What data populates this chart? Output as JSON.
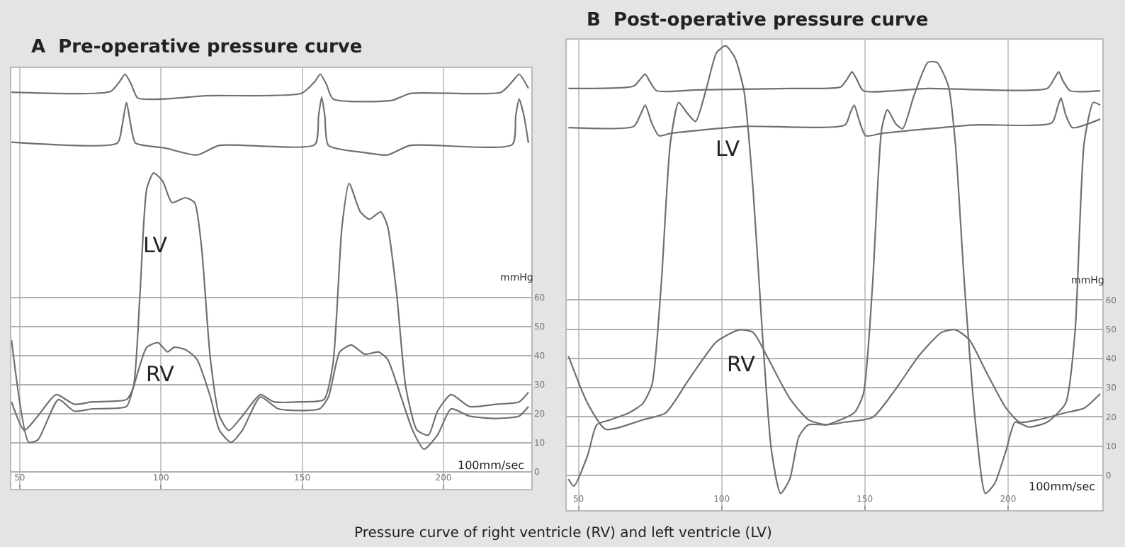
{
  "chart_data": [
    {
      "type": "line",
      "title": "A  Pre-operative pressure curve",
      "xlim": [
        47,
        231
      ],
      "ylim": [
        -6,
        139
      ],
      "xticks": [
        50,
        100,
        150,
        200
      ],
      "yticks": [
        0,
        10,
        20,
        30,
        40,
        50,
        60
      ],
      "grid": true,
      "legend": false,
      "marker": "none",
      "line_style": "solid",
      "annotations": [
        "mmHg",
        "100mm/sec",
        "Pressure curve of right ventricle (RV) and left ventricle (LV)"
      ],
      "series": [
        {
          "name": "LV",
          "color": "#707070",
          "x": [
            47.1,
            51.6,
            56.4,
            62.9,
            69.3,
            75.7,
            87.8,
            90.2,
            92.6,
            95.0,
            97.4,
            100.6,
            103.9,
            108.7,
            111.9,
            114.3,
            117.5,
            120.7,
            124.0,
            128.8,
            135.2,
            140.0,
            149.7,
            157.7,
            160.9,
            164.1,
            166.6,
            170.6,
            173.8,
            177.8,
            180.2,
            183.4,
            186.7,
            190.7,
            194.7,
            197.9,
            202.7,
            209.2,
            218.8,
            226.8,
            230.1
          ],
          "values": [
            24.0,
            14.2,
            19.1,
            26.5,
            23.2,
            24.0,
            24.8,
            28.9,
            61.6,
            97.5,
            102.8,
            100.0,
            92.6,
            94.3,
            92.6,
            77.9,
            38.7,
            19.1,
            14.2,
            19.1,
            26.5,
            24.0,
            24.0,
            24.8,
            37.1,
            84.5,
            99.2,
            89.4,
            86.9,
            89.4,
            84.5,
            61.6,
            28.9,
            14.2,
            12.6,
            20.8,
            26.5,
            22.4,
            23.2,
            24.0,
            27.3
          ]
        },
        {
          "name": "RV",
          "color": "#707070",
          "x": [
            47.1,
            53.2,
            56.4,
            63.7,
            69.3,
            75.7,
            87.8,
            90.2,
            95.0,
            99.0,
            102.3,
            104.7,
            108.7,
            112.7,
            117.5,
            120.7,
            124.8,
            128.8,
            135.2,
            141.6,
            156.1,
            159.3,
            163.3,
            167.4,
            172.2,
            177.0,
            180.2,
            185.0,
            189.1,
            193.1,
            197.9,
            202.7,
            209.2,
            218.8,
            226.8,
            230.1
          ],
          "values": [
            45.3,
            10.1,
            10.9,
            24.8,
            20.8,
            21.6,
            22.4,
            28.9,
            42.8,
            44.4,
            41.2,
            42.8,
            42.0,
            38.7,
            25.7,
            14.2,
            10.1,
            14.2,
            25.7,
            21.6,
            21.6,
            25.7,
            41.2,
            43.6,
            40.4,
            41.2,
            38.7,
            25.7,
            14.2,
            7.7,
            12.6,
            21.6,
            19.1,
            18.3,
            19.1,
            22.4
          ]
        },
        {
          "color": "#707070",
          "x": [
            47.1,
            82.2,
            85.4,
            87.3,
            89.4,
            91.8,
            101.4,
            115.9,
            149.7,
            154.5,
            156.4,
            158.5,
            160.9,
            181.8,
            188.3,
            220.4,
            224.4,
            226.8,
            230.1
          ],
          "values": [
            130.6,
            130.9,
            134.3,
            136.8,
            133.5,
            128.6,
            128.3,
            129.4,
            130.2,
            134.3,
            136.8,
            133.5,
            128.3,
            127.8,
            130.2,
            130.6,
            134.3,
            136.8,
            131.9
          ]
        },
        {
          "color": "#707070",
          "x": [
            47.1,
            84.6,
            86.2,
            87.8,
            89.4,
            91.0,
            101.4,
            112.7,
            120.7,
            154.5,
            155.8,
            156.9,
            158.0,
            159.3,
            172.2,
            180.2,
            188.3,
            224.4,
            225.6,
            226.8,
            228.5,
            230.1
          ],
          "values": [
            113.4,
            113.1,
            118.8,
            127.0,
            118.8,
            113.1,
            111.4,
            109.0,
            112.3,
            112.6,
            122.5,
            128.9,
            122.5,
            112.3,
            109.8,
            109.0,
            112.3,
            112.6,
            122.5,
            128.3,
            122.5,
            113.1
          ]
        }
      ]
    },
    {
      "type": "line",
      "title": "B  Post-operative pressure curve",
      "xlim": [
        46,
        233
      ],
      "ylim": [
        -12,
        149
      ],
      "xticks": [
        50,
        100,
        150,
        200
      ],
      "yticks": [
        0,
        10,
        20,
        30,
        40,
        50,
        60
      ],
      "grid": true,
      "legend": false,
      "marker": "none",
      "line_style": "solid",
      "annotations": [
        "mmHg",
        "100mm/sec"
      ],
      "series": [
        {
          "name": "LV",
          "color": "#707070",
          "x": [
            46.5,
            48.4,
            53.2,
            56.4,
            61.2,
            67.7,
            72.5,
            75.7,
            78.9,
            82.1,
            85.0,
            87.7,
            90.9,
            94.9,
            98.2,
            101.4,
            104.6,
            107.8,
            111.0,
            114.2,
            117.4,
            120.6,
            123.8,
            127.0,
            130.3,
            136.7,
            146.3,
            149.5,
            152.7,
            155.9,
            157.9,
            160.8,
            163.2,
            167.2,
            172.0,
            175.2,
            179.2,
            181.6,
            184.8,
            188.8,
            192.1,
            195.3,
            199.3,
            202.5,
            207.3,
            213.7,
            220.1,
            223.4,
            226.6,
            229.8,
            232.2
          ],
          "values": [
            -1.3,
            -3.7,
            6.8,
            17.3,
            19.0,
            21.4,
            24.6,
            31.1,
            65.2,
            113.8,
            127.6,
            124.3,
            121.1,
            133.2,
            144.6,
            147.0,
            143.0,
            131.6,
            97.6,
            48.9,
            8.4,
            -6.2,
            -1.3,
            13.3,
            17.3,
            17.3,
            21.4,
            27.9,
            65.2,
            118.6,
            125.1,
            120.3,
            118.6,
            130.0,
            141.3,
            141.3,
            133.2,
            113.8,
            65.2,
            16.5,
            -6.2,
            -2.9,
            8.4,
            18.2,
            16.5,
            18.2,
            24.6,
            48.9,
            113.8,
            127.6,
            126.7
          ]
        },
        {
          "name": "RV",
          "color": "#707070",
          "x": [
            46.5,
            53.2,
            59.6,
            72.5,
            80.5,
            88.5,
            98.2,
            106.2,
            111.0,
            115.8,
            123.8,
            130.3,
            136.7,
            143.1,
            152.7,
            160.8,
            168.8,
            176.8,
            181.6,
            186.4,
            192.9,
            199.3,
            204.1,
            210.5,
            220.1,
            226.6,
            232.2
          ],
          "values": [
            40.8,
            24.6,
            15.7,
            19.0,
            21.4,
            32.7,
            45.7,
            49.8,
            48.9,
            40.8,
            26.3,
            19.0,
            17.3,
            18.2,
            19.8,
            29.5,
            40.8,
            48.9,
            49.8,
            46.5,
            34.4,
            23.0,
            18.2,
            19.0,
            21.4,
            23.0,
            27.9
          ]
        },
        {
          "color": "#707070",
          "x": [
            46.5,
            69.3,
            71.7,
            73.3,
            74.9,
            77.3,
            91.7,
            123.8,
            141.5,
            143.9,
            145.5,
            147.1,
            149.5,
            172.0,
            213.7,
            216.1,
            217.7,
            219.3,
            221.7,
            232.2
          ],
          "values": [
            132.4,
            133.2,
            135.7,
            137.3,
            134.8,
            131.6,
            131.9,
            132.4,
            132.9,
            135.7,
            138.1,
            135.7,
            131.6,
            132.4,
            132.4,
            135.7,
            138.1,
            134.8,
            131.6,
            131.6
          ]
        },
        {
          "color": "#707070",
          "x": [
            46.5,
            69.3,
            71.7,
            73.3,
            75.7,
            78.1,
            82.1,
            107.8,
            143.1,
            145.0,
            146.3,
            147.9,
            150.3,
            155.9,
            188.0,
            215.3,
            217.3,
            218.5,
            220.1,
            222.5,
            232.2
          ],
          "values": [
            119.0,
            119.4,
            123.5,
            126.7,
            120.3,
            116.2,
            117.0,
            119.4,
            119.9,
            124.3,
            126.7,
            121.9,
            116.2,
            117.0,
            119.9,
            120.6,
            125.9,
            129.2,
            123.5,
            119.0,
            121.9
          ]
        }
      ]
    }
  ]
}
